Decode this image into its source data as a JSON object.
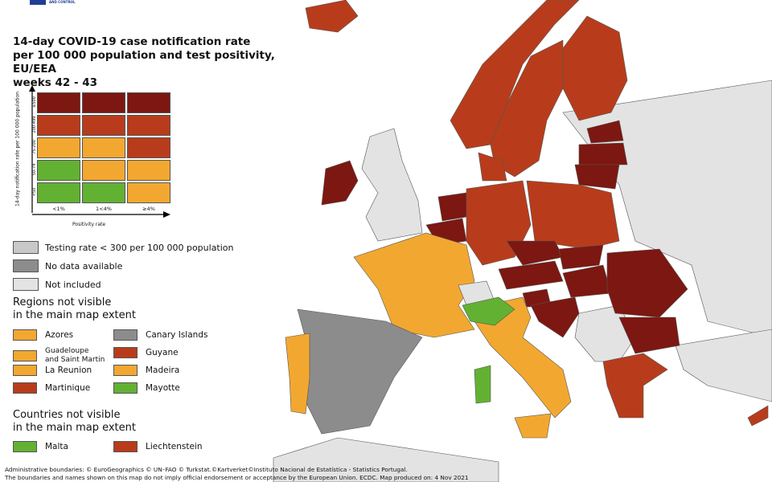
{
  "logo": {
    "text": "AND CONTROL"
  },
  "title": {
    "line1": "14-day COVID-19 case notification rate",
    "line2": "per 100 000 population and test positivity, EU/EEA",
    "line3": "weeks 42 - 43"
  },
  "colors": {
    "dark_red": "#7d1711",
    "red": "#b83c1b",
    "orange": "#f2a830",
    "green": "#63b132",
    "dark_grey": "#8c8c8c",
    "mid_grey": "#c8c8c8",
    "light_grey": "#e3e3e3"
  },
  "matrix": {
    "y_axis_label": "14-day notification rate per 100 000 population",
    "x_axis_label": "Positivity rate",
    "rows": [
      "≥500",
      "200-499",
      "75-200",
      "50-74",
      "<50"
    ],
    "columns": [
      "<1%",
      "1<4%",
      "≥4%"
    ],
    "cells": [
      [
        "dark_red",
        "dark_red",
        "dark_red"
      ],
      [
        "red",
        "red",
        "red"
      ],
      [
        "orange",
        "orange",
        "red"
      ],
      [
        "green",
        "orange",
        "orange"
      ],
      [
        "green",
        "green",
        "orange"
      ]
    ]
  },
  "legend": [
    {
      "label": "Testing rate < 300 per 100 000 population",
      "color": "mid_grey"
    },
    {
      "label": "No data available",
      "color": "dark_grey"
    },
    {
      "label": "Not included",
      "color": "light_grey"
    }
  ],
  "regions": {
    "heading_line1": "Regions not visible",
    "heading_line2": "in the main map extent",
    "items": [
      {
        "label": "Azores",
        "color": "orange"
      },
      {
        "label": "Canary Islands",
        "color": "dark_grey"
      },
      {
        "label": "Guadeloupe and Saint Martin",
        "label_line1": "Guadeloupe",
        "label_line2": "and Saint Martin",
        "color": "orange"
      },
      {
        "label": "Guyane",
        "color": "red"
      },
      {
        "label": "La Reunion",
        "color": "orange"
      },
      {
        "label": "Madeira",
        "color": "orange"
      },
      {
        "label": "Martinique",
        "color": "red"
      },
      {
        "label": "Mayotte",
        "color": "green"
      }
    ]
  },
  "countries": {
    "heading_line1": "Countries not visible",
    "heading_line2": "in the main map extent",
    "items": [
      {
        "label": "Malta",
        "color": "green"
      },
      {
        "label": "Liechtenstein",
        "color": "red"
      }
    ]
  },
  "map_countries": [
    {
      "name": "Iceland",
      "color": "red"
    },
    {
      "name": "Norway",
      "color": "red"
    },
    {
      "name": "Sweden",
      "color": "red"
    },
    {
      "name": "Finland",
      "color": "red"
    },
    {
      "name": "Estonia",
      "color": "dark_red"
    },
    {
      "name": "Latvia",
      "color": "dark_red"
    },
    {
      "name": "Lithuania",
      "color": "dark_red"
    },
    {
      "name": "Ireland",
      "color": "dark_red"
    },
    {
      "name": "United Kingdom",
      "color": "light_grey"
    },
    {
      "name": "Netherlands",
      "color": "dark_red"
    },
    {
      "name": "Belgium",
      "color": "dark_red"
    },
    {
      "name": "Denmark",
      "color": "red"
    },
    {
      "name": "Germany",
      "color": "red"
    },
    {
      "name": "Poland",
      "color": "red"
    },
    {
      "name": "France",
      "color": "orange"
    },
    {
      "name": "Spain",
      "color": "dark_grey"
    },
    {
      "name": "Portugal",
      "color": "orange"
    },
    {
      "name": "Switzerland",
      "color": "light_grey"
    },
    {
      "name": "Italy",
      "color": "orange"
    },
    {
      "name": "Northern Italy",
      "color": "green"
    },
    {
      "name": "Sardinia",
      "color": "green"
    },
    {
      "name": "Czechia",
      "color": "dark_red"
    },
    {
      "name": "Austria",
      "color": "dark_red"
    },
    {
      "name": "Slovakia",
      "color": "dark_red"
    },
    {
      "name": "Hungary",
      "color": "dark_red"
    },
    {
      "name": "Slovenia",
      "color": "dark_red"
    },
    {
      "name": "Croatia",
      "color": "dark_red"
    },
    {
      "name": "Romania",
      "color": "dark_red"
    },
    {
      "name": "Bulgaria",
      "color": "dark_red"
    },
    {
      "name": "Greece",
      "color": "red"
    },
    {
      "name": "Cyprus",
      "color": "red"
    }
  ],
  "footer": {
    "line1": "Administrative boundaries: © EuroGeographics © UN–FAO © Turkstat.©Kartverket©Instituto Nacional de Estatística - Statistics Portugal.",
    "line2": "The boundaries and names shown on this map do not imply official endorsement or acceptance by the European Union. ECDC. Map produced on: 4 Nov 2021"
  }
}
